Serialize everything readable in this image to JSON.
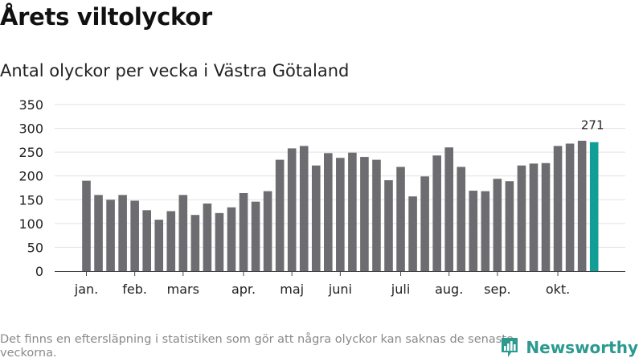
{
  "title": "Årets viltolyckor",
  "subtitle": "Antal olyckor per vecka i Västra Götaland",
  "footnote": "Det finns en eftersläpning i statistiken som gör att några olyckor kan saknas de senaste veckorna.",
  "brand": {
    "name": "Newsworthy",
    "icon": "bar-chart-logo-icon"
  },
  "colors": {
    "bar": "#6d6c70",
    "highlight": "#119e96",
    "grid": "#e2e2e2",
    "axis": "#444444",
    "brand": "#2b9a8f"
  },
  "chart_data": {
    "type": "bar",
    "title": "Årets viltolyckor",
    "subtitle": "Antal olyckor per vecka i Västra Götaland",
    "xlabel": "",
    "ylabel": "",
    "ylim": [
      0,
      350
    ],
    "yticks": [
      0,
      50,
      100,
      150,
      200,
      250,
      300,
      350
    ],
    "grid": true,
    "month_labels": [
      {
        "label": "jan.",
        "week": 1
      },
      {
        "label": "feb.",
        "week": 5
      },
      {
        "label": "mars",
        "week": 9
      },
      {
        "label": "apr.",
        "week": 14
      },
      {
        "label": "maj",
        "week": 18
      },
      {
        "label": "juni",
        "week": 22
      },
      {
        "label": "juli",
        "week": 27
      },
      {
        "label": "aug.",
        "week": 31
      },
      {
        "label": "sep.",
        "week": 35
      },
      {
        "label": "okt.",
        "week": 40
      }
    ],
    "values": [
      190,
      160,
      150,
      160,
      148,
      128,
      108,
      126,
      160,
      118,
      142,
      122,
      134,
      164,
      146,
      168,
      234,
      258,
      263,
      222,
      248,
      238,
      249,
      240,
      234,
      191,
      219,
      157,
      199,
      243,
      260,
      219,
      169,
      168,
      194,
      189,
      222,
      226,
      227,
      263,
      268,
      274,
      271
    ],
    "highlight_last": true,
    "last_value_label": "271"
  }
}
